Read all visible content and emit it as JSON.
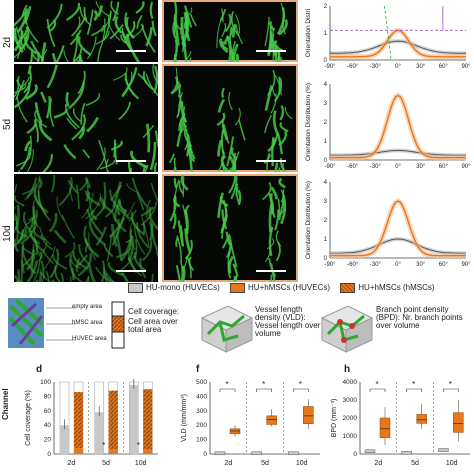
{
  "rows": [
    "2d",
    "5d",
    "10d"
  ],
  "panel_letters": {
    "d": "d",
    "f": "f",
    "h": "h"
  },
  "side_label": "Channel",
  "orientation": {
    "ylabel_top": "Orientation Distri",
    "ylabel": "Orientation Distribution (%)",
    "xticks": [
      "-90°",
      "-60°",
      "-30°",
      "0°",
      "30°",
      "60°",
      "90°"
    ],
    "yticks_mid": [
      "0",
      "1",
      "2",
      "3",
      "4"
    ],
    "yticks_top": [
      "0",
      "1",
      "2"
    ]
  },
  "legend": {
    "mono": "HU-mono (HUVECs)",
    "hu_huvec": "HU+hMSCs (HUVECs)",
    "hu_hmsc": "HU+hMSCs (hMSCs)",
    "colors": {
      "gray": "#c8c8c8",
      "orange": "#e8761a",
      "dark": "#8a4d17"
    }
  },
  "schematics": {
    "empty_area": "empty area",
    "hmsc_area": "hMSC area",
    "huvec_area": "HUVEC area",
    "coverage_title": "Cell coverage:",
    "coverage_desc": "Cell area over total area",
    "vld_text": "Vessel length density (VLD): Vessel length over volume",
    "bpd_text": "Branch point density (BPD): Nr. branch points over volume"
  },
  "chart_data": [
    {
      "type": "bar",
      "title": "",
      "ylabel": "Cell coverage (%)",
      "categories": [
        "2d",
        "5d",
        "10d"
      ],
      "ylim": [
        0,
        100
      ],
      "yticks": [
        "0",
        "20",
        "40",
        "60",
        "80",
        "100"
      ],
      "series": [
        {
          "name": "HU-mono (HUVECs)",
          "values": [
            40,
            58,
            96
          ]
        },
        {
          "name": "HU+hMSCs (HUVECs)",
          "values": [
            8,
            7,
            6
          ]
        },
        {
          "name": "HU+hMSCs (hMSCs)",
          "values": [
            86,
            88,
            90
          ]
        }
      ],
      "significance": [
        "*",
        "*"
      ]
    },
    {
      "type": "box",
      "ylabel": "VLD (mm/mm³)",
      "categories": [
        "2d",
        "5d",
        "10d"
      ],
      "ylim": [
        0,
        500
      ],
      "yticks": [
        "0",
        "100",
        "200",
        "300",
        "400",
        "500"
      ],
      "series": [
        {
          "name": "HU-mono (HUVECs)",
          "median": [
            5,
            5,
            5
          ]
        },
        {
          "name": "HU+hMSCs",
          "q1": [
            140,
            205,
            210
          ],
          "median": [
            160,
            240,
            265
          ],
          "q3": [
            175,
            265,
            330
          ],
          "min": [
            120,
            190,
            175
          ],
          "max": [
            200,
            310,
            380
          ]
        }
      ],
      "significance": [
        "*",
        "*",
        "*"
      ]
    },
    {
      "type": "box",
      "ylabel": "BPD (mm⁻³)",
      "categories": [
        "2d",
        "5d",
        "10d"
      ],
      "ylim": [
        0,
        4000
      ],
      "yticks": [
        "0",
        "1000",
        "2000",
        "3000",
        "4000"
      ],
      "series": [
        {
          "name": "HU-mono (HUVECs)",
          "median": [
            150,
            60,
            220
          ]
        },
        {
          "name": "HU+hMSCs",
          "q1": [
            900,
            1700,
            1200
          ],
          "median": [
            1400,
            1900,
            1700
          ],
          "q3": [
            2000,
            2200,
            2300
          ],
          "min": [
            500,
            1400,
            700
          ],
          "max": [
            2600,
            2800,
            3000
          ]
        }
      ],
      "significance": [
        "*",
        "*",
        "*"
      ]
    }
  ]
}
